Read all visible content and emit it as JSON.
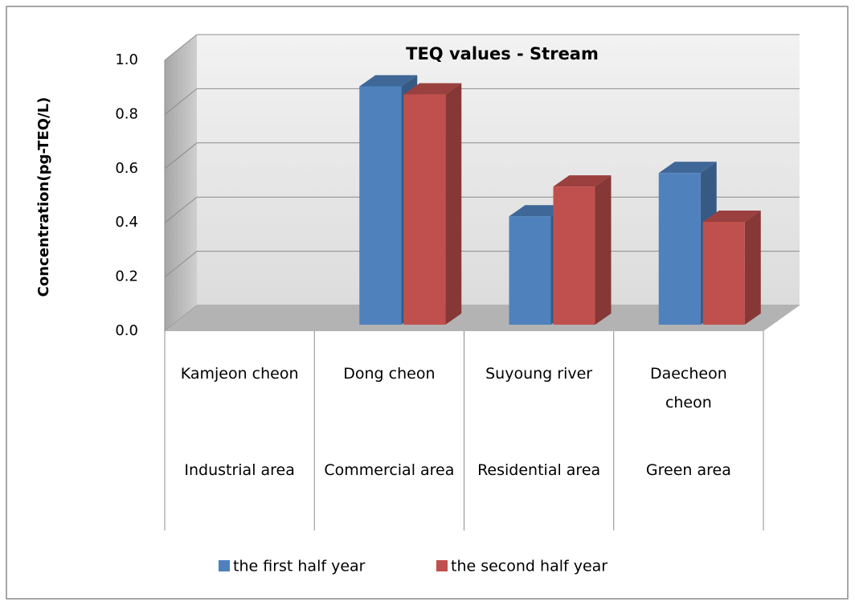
{
  "chart_data": {
    "type": "bar3d",
    "title": "TEQ values - Stream",
    "y_label": "Concentration(pg-TEQ/L)",
    "categories": [
      "Kamjeon cheon",
      "Dong cheon",
      "Suyoung river",
      "Daecheon cheon"
    ],
    "category_groups": [
      "Industrial area",
      "Commercial area",
      "Residential area",
      "Green area"
    ],
    "series": [
      {
        "name": "the first half year",
        "color": "#4f81bd",
        "values": [
          null,
          0.88,
          0.4,
          0.56
        ]
      },
      {
        "name": "the second half year",
        "color": "#c0504d",
        "values": [
          null,
          0.85,
          0.51,
          0.38
        ]
      }
    ],
    "ylim": [
      0,
      1
    ],
    "yticks": [
      {
        "value": 0,
        "label": "0.0"
      },
      {
        "value": 0.2,
        "label": "0.2"
      },
      {
        "value": 0.4,
        "label": "0.4"
      },
      {
        "value": 0.6,
        "label": "0.6"
      },
      {
        "value": 0.8,
        "label": "0.8"
      },
      {
        "value": 1,
        "label": "1.0"
      }
    ],
    "grid": true,
    "legend": "bottom"
  }
}
